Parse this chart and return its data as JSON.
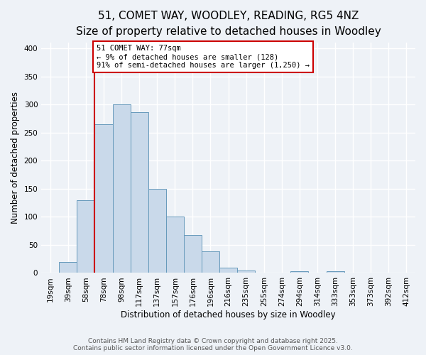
{
  "title": "51, COMET WAY, WOODLEY, READING, RG5 4NZ",
  "subtitle": "Size of property relative to detached houses in Woodley",
  "xlabel": "Distribution of detached houses by size in Woodley",
  "ylabel": "Number of detached properties",
  "bin_labels": [
    "19sqm",
    "39sqm",
    "58sqm",
    "78sqm",
    "98sqm",
    "117sqm",
    "137sqm",
    "157sqm",
    "176sqm",
    "196sqm",
    "216sqm",
    "235sqm",
    "255sqm",
    "274sqm",
    "294sqm",
    "314sqm",
    "333sqm",
    "353sqm",
    "373sqm",
    "392sqm",
    "412sqm"
  ],
  "bar_heights": [
    0,
    20,
    130,
    265,
    300,
    287,
    150,
    100,
    67,
    38,
    10,
    4,
    0,
    0,
    3,
    0,
    3,
    1,
    0,
    0,
    0
  ],
  "bar_color": "#c9d9ea",
  "bar_edge_color": "#6699bb",
  "vline_color": "#cc0000",
  "ylim": [
    0,
    410
  ],
  "yticks": [
    0,
    50,
    100,
    150,
    200,
    250,
    300,
    350,
    400
  ],
  "annotation_title": "51 COMET WAY: 77sqm",
  "annotation_line1": "← 9% of detached houses are smaller (128)",
  "annotation_line2": "91% of semi-detached houses are larger (1,250) →",
  "annotation_box_color": "#ffffff",
  "annotation_box_edge_color": "#cc0000",
  "footnote1": "Contains HM Land Registry data © Crown copyright and database right 2025.",
  "footnote2": "Contains public sector information licensed under the Open Government Licence v3.0.",
  "background_color": "#eef2f7",
  "grid_color": "#ffffff",
  "title_fontsize": 11,
  "subtitle_fontsize": 9.5,
  "axis_label_fontsize": 8.5,
  "tick_fontsize": 7.5,
  "annotation_fontsize": 7.5,
  "footnote_fontsize": 6.5
}
